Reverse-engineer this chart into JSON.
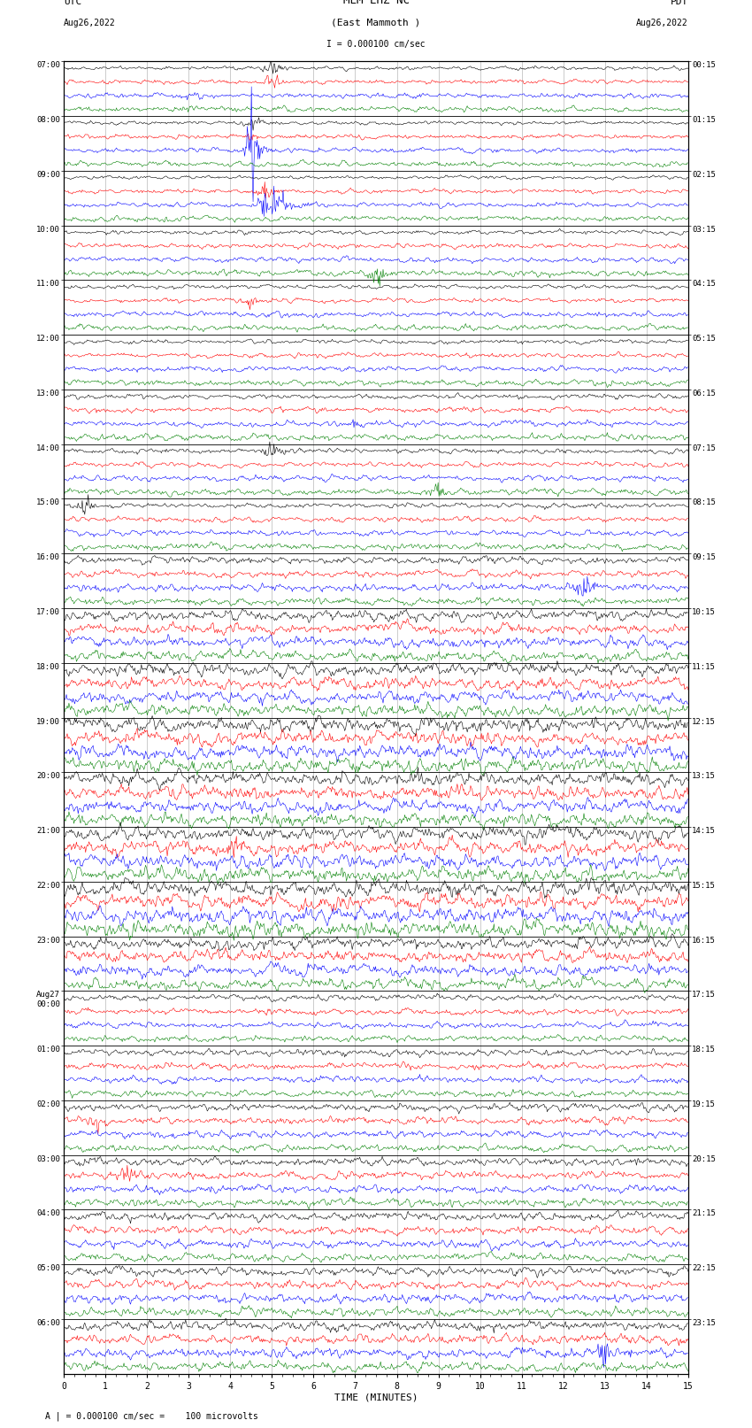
{
  "title_line1": "MEM EHZ NC",
  "title_line2": "(East Mammoth )",
  "scale_text": "I = 0.000100 cm/sec",
  "bottom_note": "A | = 0.000100 cm/sec =    100 microvolts",
  "xlabel": "TIME (MINUTES)",
  "utc_times_left": [
    "07:00",
    "08:00",
    "09:00",
    "10:00",
    "11:00",
    "12:00",
    "13:00",
    "14:00",
    "15:00",
    "16:00",
    "17:00",
    "18:00",
    "19:00",
    "20:00",
    "21:00",
    "22:00",
    "23:00",
    "Aug27\n00:00",
    "01:00",
    "02:00",
    "03:00",
    "04:00",
    "05:00",
    "06:00"
  ],
  "pdt_times_right": [
    "00:15",
    "01:15",
    "02:15",
    "03:15",
    "04:15",
    "05:15",
    "06:15",
    "07:15",
    "08:15",
    "09:15",
    "10:15",
    "11:15",
    "12:15",
    "13:15",
    "14:15",
    "15:15",
    "16:15",
    "17:15",
    "18:15",
    "19:15",
    "20:15",
    "21:15",
    "22:15",
    "23:15"
  ],
  "colors": [
    "black",
    "red",
    "blue",
    "green"
  ],
  "n_rows": 24,
  "traces_per_row": 4,
  "minutes": 15,
  "bg_color": "white",
  "grid_color": "#999999"
}
